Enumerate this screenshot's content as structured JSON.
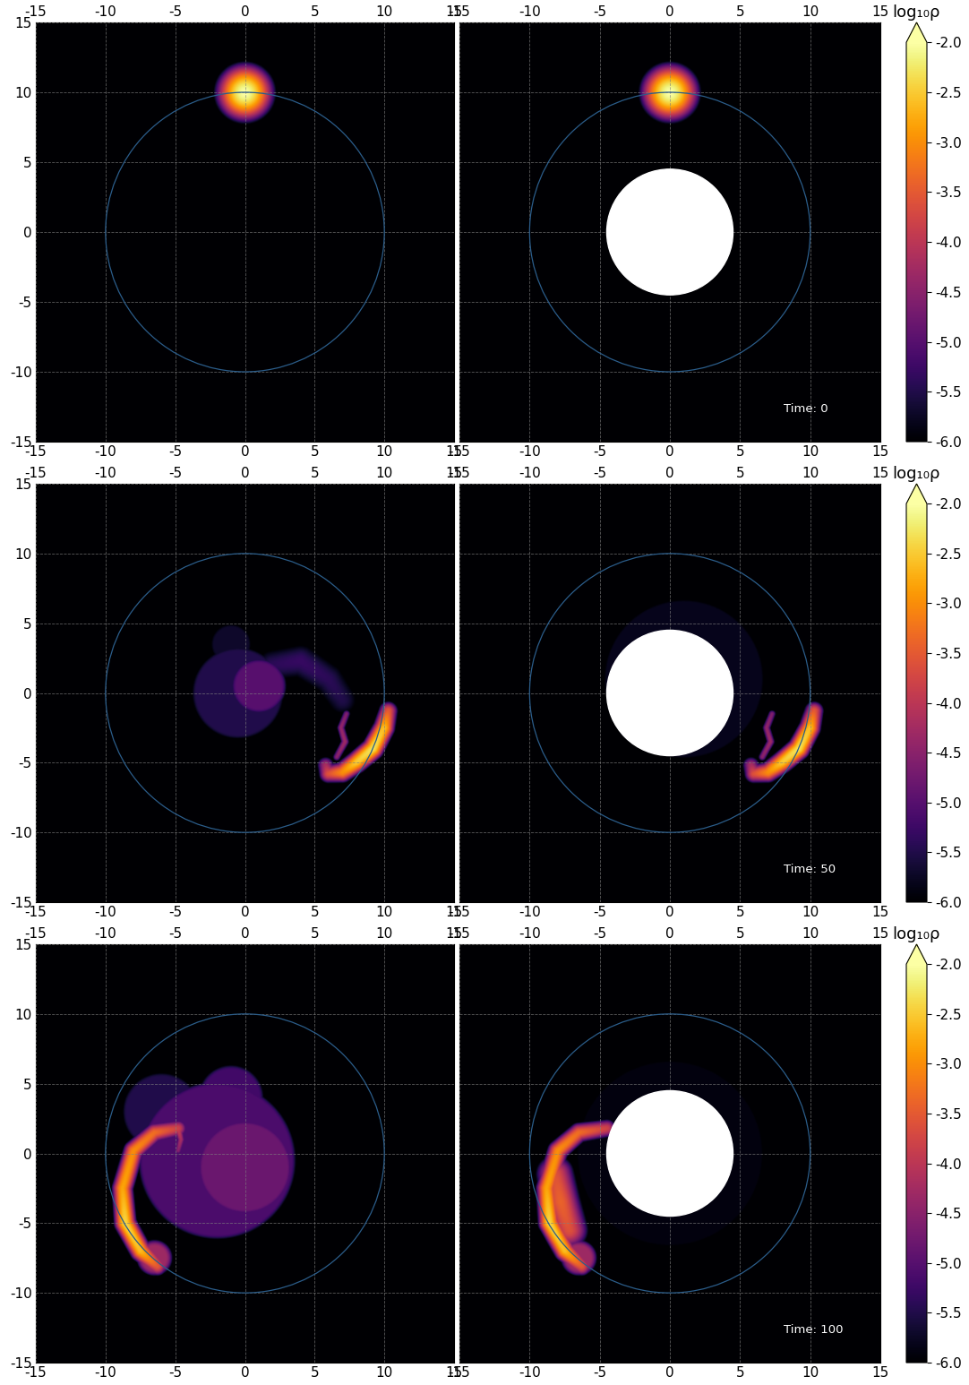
{
  "chart_data": [
    {
      "type": "heatmap",
      "xlim": [
        -15,
        15
      ],
      "ylim": [
        -15,
        15
      ],
      "xticks": [
        -15,
        -10,
        -5,
        0,
        5,
        10,
        15
      ],
      "yticks": [
        -15,
        -10,
        -5,
        0,
        5,
        10,
        15
      ],
      "grid": true,
      "circle_radius": 10,
      "color": "#2b5d8a",
      "color_range": [
        -6.0,
        -2.0
      ],
      "features": [
        {
          "kind": "blob",
          "center": [
            0,
            10
          ],
          "radius": 0.75,
          "peak": -2.0
        }
      ]
    },
    {
      "type": "heatmap",
      "xlim": [
        -15,
        15
      ],
      "ylim": [
        -15,
        15
      ],
      "xticks": [
        -15,
        -10,
        -5,
        0,
        5,
        10,
        15
      ],
      "yticks": [
        -15,
        -10,
        -5,
        0,
        5,
        10,
        15
      ],
      "grid": true,
      "tick_labels": "x",
      "circle_radius": 10,
      "excision_radius": 4.5,
      "color": "#2b5d8a",
      "color_range": [
        -6.0,
        -2.0
      ],
      "color_ticks": [
        -6.0,
        -5.5,
        -5.0,
        -4.5,
        -4.0,
        -3.5,
        -3.0,
        -2.5,
        -2.0
      ],
      "color_label": "log₁₀ρ",
      "annotation": "Time: 0",
      "features": [
        {
          "kind": "blob",
          "center": [
            0,
            10
          ],
          "radius": 0.75,
          "peak": -2.0
        }
      ]
    },
    {
      "type": "heatmap",
      "xlim": [
        -15,
        15
      ],
      "ylim": [
        -15,
        15
      ],
      "xticks": [
        -15,
        -10,
        -5,
        0,
        5,
        10,
        15
      ],
      "yticks": [
        -15,
        -10,
        -5,
        0,
        5,
        10,
        15
      ],
      "grid": true,
      "circle_radius": 10,
      "color": "#2b5d8a",
      "color_range": [
        -6.0,
        -2.0
      ],
      "features": [
        {
          "kind": "cloud",
          "center": [
            -0.5,
            0
          ],
          "radius": 3.0,
          "level": -5.5
        },
        {
          "kind": "cloud",
          "center": [
            1,
            0.5
          ],
          "radius": 1.6,
          "level": -5.0
        },
        {
          "kind": "cloud",
          "center": [
            -1,
            3.5
          ],
          "radius": 1.2,
          "level": -5.7
        },
        {
          "kind": "arc",
          "width": 0.9,
          "points": [
            [
              2,
              2,
              -5.4
            ],
            [
              4,
              2.3,
              -5.3
            ],
            [
              6,
              1,
              -5.4
            ],
            [
              7,
              -0.5,
              -5.5
            ]
          ]
        },
        {
          "kind": "arc",
          "width": 0.15,
          "points": [
            [
              7.3,
              -1.5,
              -4.6
            ],
            [
              6.9,
              -2.5,
              -4.4
            ],
            [
              7.2,
              -3.5,
              -4.3
            ],
            [
              6.6,
              -4.6,
              -4.5
            ]
          ]
        },
        {
          "kind": "arc",
          "width": 0.3,
          "points": [
            [
              10.3,
              -1.3,
              -3.5
            ],
            [
              10.0,
              -2.5,
              -2.6
            ],
            [
              9.2,
              -4.0,
              -2.3
            ],
            [
              8.0,
              -5.0,
              -2.5
            ],
            [
              7.0,
              -5.7,
              -3.0
            ],
            [
              6.0,
              -5.8,
              -3.6
            ],
            [
              5.8,
              -5.2,
              -4.2
            ]
          ]
        }
      ]
    },
    {
      "type": "heatmap",
      "xlim": [
        -15,
        15
      ],
      "ylim": [
        -15,
        15
      ],
      "xticks": [
        -15,
        -10,
        -5,
        0,
        5,
        10,
        15
      ],
      "yticks": [
        -15,
        -10,
        -5,
        0,
        5,
        10,
        15
      ],
      "grid": true,
      "tick_labels": "x",
      "circle_radius": 10,
      "excision_radius": 4.5,
      "color": "#2b5d8a",
      "color_range": [
        -6.0,
        -2.0
      ],
      "color_ticks": [
        -6.0,
        -5.5,
        -5.0,
        -4.5,
        -4.0,
        -3.5,
        -3.0,
        -2.5,
        -2.0
      ],
      "color_label": "log₁₀ρ",
      "annotation": "Time: 50",
      "features": [
        {
          "kind": "cloud",
          "center": [
            1,
            1
          ],
          "radius": 5.5,
          "level": -5.8
        },
        {
          "kind": "arc",
          "width": 0.15,
          "points": [
            [
              7.3,
              -1.5,
              -4.6
            ],
            [
              6.9,
              -2.5,
              -4.4
            ],
            [
              7.2,
              -3.5,
              -4.3
            ],
            [
              6.6,
              -4.6,
              -4.5
            ]
          ]
        },
        {
          "kind": "arc",
          "width": 0.3,
          "points": [
            [
              10.3,
              -1.3,
              -3.5
            ],
            [
              10.0,
              -2.5,
              -2.6
            ],
            [
              9.2,
              -4.0,
              -2.3
            ],
            [
              8.0,
              -5.0,
              -2.5
            ],
            [
              7.0,
              -5.7,
              -3.0
            ],
            [
              6.0,
              -5.8,
              -3.6
            ],
            [
              5.8,
              -5.2,
              -4.2
            ]
          ]
        }
      ]
    },
    {
      "type": "heatmap",
      "xlim": [
        -15,
        15
      ],
      "ylim": [
        -15,
        15
      ],
      "xticks": [
        -15,
        -10,
        -5,
        0,
        5,
        10,
        15
      ],
      "yticks": [
        -15,
        -10,
        -5,
        0,
        5,
        10,
        15
      ],
      "grid": true,
      "circle_radius": 10,
      "color": "#2b5d8a",
      "color_range": [
        -6.0,
        -2.0
      ],
      "features": [
        {
          "kind": "cloud",
          "center": [
            -2,
            -0.5
          ],
          "radius": 5.3,
          "level": -5.1
        },
        {
          "kind": "cloud",
          "center": [
            0,
            -1
          ],
          "radius": 3.0,
          "level": -4.8
        },
        {
          "kind": "cloud",
          "center": [
            -6,
            3
          ],
          "radius": 2.5,
          "level": -5.5
        },
        {
          "kind": "cloud",
          "center": [
            -1,
            4
          ],
          "radius": 2.0,
          "level": -5.2
        },
        {
          "kind": "cloud",
          "center": [
            -6.5,
            -7.5
          ],
          "radius": 0.8,
          "level": -4.3
        },
        {
          "kind": "arc",
          "width": 0.15,
          "points": [
            [
              -4.8,
              1.8,
              -3.8
            ],
            [
              -4.6,
              1.0,
              -4.2
            ],
            [
              -4.8,
              0.2,
              -4.5
            ]
          ]
        },
        {
          "kind": "arc",
          "width": 0.3,
          "points": [
            [
              -4.8,
              1.8,
              -3.8
            ],
            [
              -6.5,
              1.5,
              -3.3
            ],
            [
              -8.0,
              0.2,
              -3.0
            ],
            [
              -8.8,
              -2.5,
              -2.8
            ],
            [
              -8.6,
              -5.0,
              -2.4
            ],
            [
              -7.5,
              -7.0,
              -2.6
            ],
            [
              -6.3,
              -8.1,
              -3.5
            ]
          ]
        }
      ]
    },
    {
      "type": "heatmap",
      "xlim": [
        -15,
        15
      ],
      "ylim": [
        -15,
        15
      ],
      "xticks": [
        -15,
        -10,
        -5,
        0,
        5,
        10,
        15
      ],
      "yticks": [
        -15,
        -10,
        -5,
        0,
        5,
        10,
        15
      ],
      "grid": true,
      "tick_labels": "x",
      "circle_radius": 10,
      "excision_radius": 4.5,
      "color": "#2b5d8a",
      "color_range": [
        -6.0,
        -2.0
      ],
      "color_ticks": [
        -6.0,
        -5.5,
        -5.0,
        -4.5,
        -4.0,
        -3.5,
        -3.0,
        -2.5,
        -2.0
      ],
      "color_label": "log₁₀ρ",
      "annotation": "Time: 100",
      "features": [
        {
          "kind": "cloud",
          "center": [
            0,
            0
          ],
          "radius": 6.5,
          "level": -5.9
        },
        {
          "kind": "cloud",
          "center": [
            -6.5,
            -7.5
          ],
          "radius": 0.8,
          "level": -4.3
        },
        {
          "kind": "arc",
          "width": 0.6,
          "points": [
            [
              -8.2,
              -1.5,
              -3.6
            ],
            [
              -7.8,
              -3.5,
              -3.4
            ],
            [
              -7.2,
              -5.5,
              -3.6
            ]
          ]
        },
        {
          "kind": "arc",
          "width": 0.3,
          "points": [
            [
              -4.5,
              1.8,
              -3.8
            ],
            [
              -6.5,
              1.5,
              -3.3
            ],
            [
              -8.0,
              0.2,
              -3.0
            ],
            [
              -8.8,
              -2.5,
              -2.8
            ],
            [
              -8.6,
              -5.0,
              -2.4
            ],
            [
              -7.5,
              -7.0,
              -2.6
            ],
            [
              -6.3,
              -8.1,
              -3.5
            ]
          ]
        }
      ]
    }
  ]
}
